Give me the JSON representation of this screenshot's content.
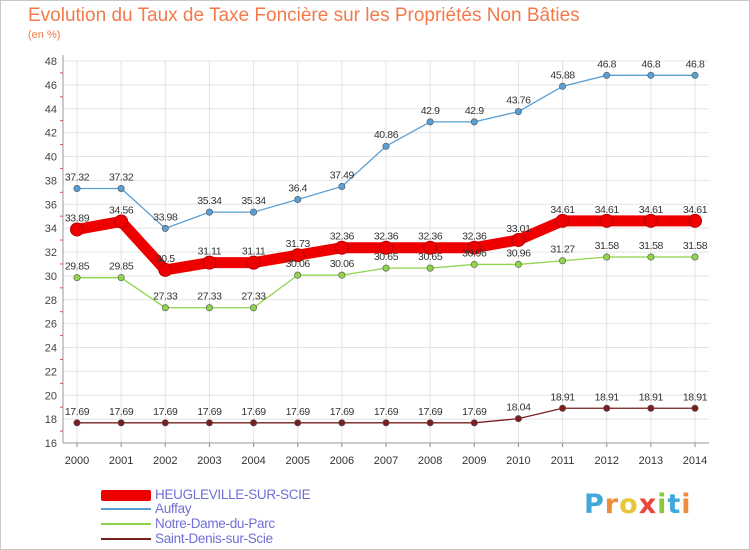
{
  "title": "Evolution du Taux de Taxe Foncière sur les Propriétés Non Bâties",
  "unit_label": "(en %)",
  "logo": {
    "text": "Proxiti",
    "letters": [
      {
        "ch": "P",
        "color": "#3fa9dc"
      },
      {
        "ch": "r",
        "color": "#ef8a3a"
      },
      {
        "ch": "o",
        "color": "#e8c63a"
      },
      {
        "ch": "x",
        "color": "#e8473a"
      },
      {
        "ch": "i",
        "color": "#8cc63f"
      },
      {
        "ch": "t",
        "color": "#3fa9dc"
      },
      {
        "ch": "i",
        "color": "#ef8a3a"
      }
    ]
  },
  "chart_data": {
    "type": "line",
    "title": "Evolution du Taux de Taxe Foncière sur les Propriétés Non Bâties",
    "ylabel": "(en %)",
    "xlabel": "",
    "ylim": [
      16,
      48
    ],
    "yticks": [
      16,
      18,
      20,
      22,
      24,
      26,
      28,
      30,
      32,
      34,
      36,
      38,
      40,
      42,
      44,
      46,
      48
    ],
    "grid": true,
    "legend_position": "bottom-left",
    "x": [
      "2000",
      "2001",
      "2002",
      "2003",
      "2004",
      "2005",
      "2006",
      "2007",
      "2008",
      "2009",
      "2010",
      "2011",
      "2012",
      "2013",
      "2014"
    ],
    "series": [
      {
        "name": "HEUGLEVILLE-SUR-SCIE",
        "color": "#ee0000",
        "emphasis": true,
        "values": [
          33.89,
          34.56,
          30.5,
          31.11,
          31.11,
          31.73,
          32.36,
          32.36,
          32.36,
          32.36,
          33.01,
          34.61,
          34.61,
          34.61,
          34.61
        ],
        "labels": [
          "33.89",
          "34.56",
          "30.5",
          "31.11",
          "31.11",
          "31.73",
          "32.36",
          "32.36",
          "32.36",
          "32.36",
          "33.01",
          "34.61",
          "34.61",
          "34.61",
          "34.61"
        ]
      },
      {
        "name": "Auffay",
        "color": "#5a9fd4",
        "emphasis": false,
        "values": [
          37.32,
          37.32,
          33.98,
          35.34,
          35.34,
          36.4,
          37.49,
          40.86,
          42.9,
          42.9,
          43.76,
          45.88,
          46.8,
          46.8,
          46.8
        ],
        "labels": [
          "37.32",
          "37.32",
          "33.98",
          "35.34",
          "35.34",
          "36.4",
          "37.49",
          "40.86",
          "42.9",
          "42.9",
          "43.76",
          "45.88",
          "46.8",
          "46.8",
          "46.8"
        ]
      },
      {
        "name": "Notre-Dame-du-Parc",
        "color": "#8fd44a",
        "emphasis": false,
        "values": [
          29.85,
          29.85,
          27.33,
          27.33,
          27.33,
          30.06,
          30.06,
          30.65,
          30.65,
          30.96,
          30.96,
          31.27,
          31.58,
          31.58,
          31.58
        ],
        "labels": [
          "29.85",
          "29.85",
          "27.33",
          "27.33",
          "27.33",
          "30.06",
          "30.06",
          "30.65",
          "30.65",
          "30.96",
          "30.96",
          "31.27",
          "31.58",
          "31.58",
          "31.58"
        ]
      },
      {
        "name": "Saint-Denis-sur-Scie",
        "color": "#7a1f1f",
        "emphasis": false,
        "values": [
          17.69,
          17.69,
          17.69,
          17.69,
          17.69,
          17.69,
          17.69,
          17.69,
          17.69,
          17.69,
          18.04,
          18.91,
          18.91,
          18.91,
          18.91
        ],
        "labels": [
          "17.69",
          "17.69",
          "17.69",
          "17.69",
          "17.69",
          "17.69",
          "17.69",
          "17.69",
          "17.69",
          "17.69",
          "18.04",
          "18.91",
          "18.91",
          "18.91",
          "18.91"
        ]
      }
    ]
  }
}
